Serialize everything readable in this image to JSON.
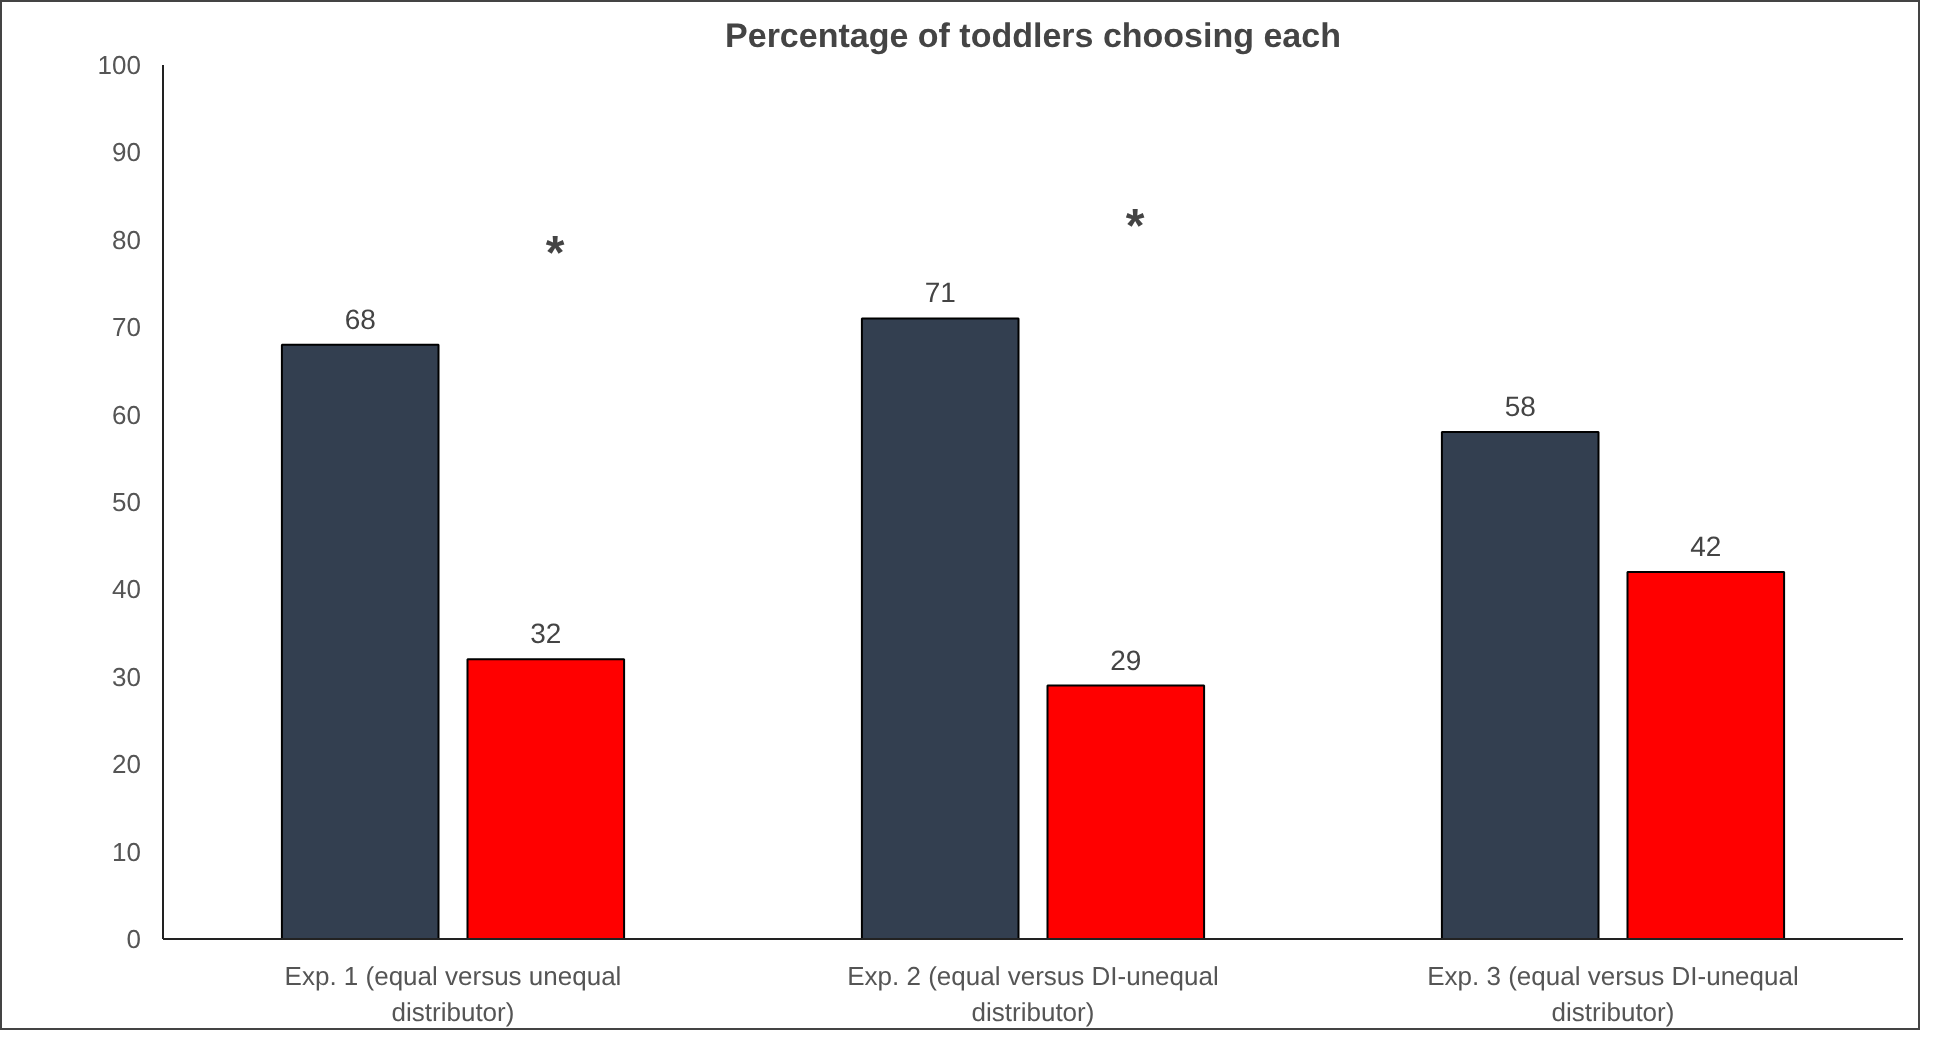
{
  "chart_data": {
    "type": "bar",
    "title": "Percentage of toddlers choosing each",
    "categories": [
      "Exp. 1 (equal versus unequal distributor)",
      "Exp. 2 (equal versus DI-unequal distributor)",
      "Exp. 3 (equal versus DI-unequal distributor)"
    ],
    "series": [
      {
        "color": "#333f50",
        "values": [
          68,
          71,
          58
        ]
      },
      {
        "color": "#ff0000",
        "values": [
          32,
          29,
          42
        ]
      }
    ],
    "ylim": [
      0,
      100
    ],
    "yticks": [
      0,
      10,
      20,
      30,
      40,
      50,
      60,
      70,
      80,
      90,
      100
    ],
    "data_labels": true,
    "grid": false,
    "annotations": [
      "*",
      "*"
    ]
  }
}
